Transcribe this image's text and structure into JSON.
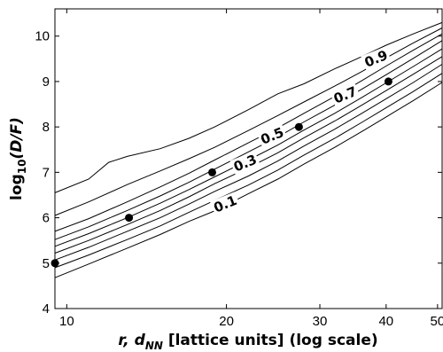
{
  "chart_data": {
    "type": "line",
    "xscale": "log",
    "xlim": [
      9.5,
      51
    ],
    "ylim": [
      4,
      10.6
    ],
    "xticks": [
      10,
      20,
      30,
      40,
      50
    ],
    "yticks": [
      4,
      5,
      6,
      7,
      8,
      9,
      10
    ],
    "xlabel": {
      "prefix": "r, d",
      "sub": "NN",
      "suffix": " [lattice units] (log scale)"
    },
    "ylabel": {
      "prefix": "log",
      "sub": "10",
      "suffix": "(D/F)"
    },
    "grid": false,
    "points": [
      {
        "x": 9.5,
        "y": 5.0
      },
      {
        "x": 13.1,
        "y": 6.0
      },
      {
        "x": 18.8,
        "y": 7.0
      },
      {
        "x": 27.4,
        "y": 8.0
      },
      {
        "x": 40.4,
        "y": 9.0
      }
    ],
    "contour_labels": [
      {
        "text": "0.1",
        "x": 19.9,
        "y": 6.3
      },
      {
        "text": "0.3",
        "x": 21.7,
        "y": 7.2
      },
      {
        "text": "0.5",
        "x": 24.4,
        "y": 7.8
      },
      {
        "text": "0.7",
        "x": 33.5,
        "y": 8.7
      },
      {
        "text": "0.9",
        "x": 38.3,
        "y": 9.5
      }
    ],
    "series": [
      {
        "x": [
          9.5,
          11,
          13,
          15,
          17,
          19,
          22,
          25,
          28,
          32,
          36,
          40,
          45,
          51
        ],
        "y": [
          4.68,
          4.98,
          5.33,
          5.63,
          5.92,
          6.15,
          6.53,
          6.85,
          7.18,
          7.55,
          7.9,
          8.22,
          8.58,
          8.98
        ]
      },
      {
        "x": [
          9.5,
          11,
          13,
          15,
          17,
          19,
          22,
          25,
          28,
          32,
          36,
          40,
          45,
          51
        ],
        "y": [
          4.9,
          5.18,
          5.52,
          5.82,
          6.12,
          6.38,
          6.72,
          7.05,
          7.38,
          7.75,
          8.1,
          8.42,
          8.78,
          9.18
        ]
      },
      {
        "x": [
          9.5,
          11,
          13,
          15,
          17,
          19,
          22,
          25,
          28,
          32,
          36,
          40,
          45,
          51
        ],
        "y": [
          5.07,
          5.35,
          5.7,
          6.0,
          6.3,
          6.58,
          6.92,
          7.25,
          7.58,
          7.95,
          8.3,
          8.62,
          8.98,
          9.38
        ]
      },
      {
        "x": [
          9.5,
          11,
          13,
          15,
          17,
          19,
          22,
          25,
          28,
          32,
          36,
          40,
          45,
          51
        ],
        "y": [
          5.22,
          5.5,
          5.85,
          6.16,
          6.46,
          6.75,
          7.1,
          7.43,
          7.76,
          8.13,
          8.48,
          8.8,
          9.16,
          9.55
        ]
      },
      {
        "x": [
          9.5,
          11,
          13,
          15,
          17,
          19,
          22,
          25,
          28,
          32,
          36,
          40,
          45,
          51
        ],
        "y": [
          5.37,
          5.65,
          6.0,
          6.32,
          6.62,
          6.9,
          7.27,
          7.6,
          7.93,
          8.3,
          8.65,
          8.97,
          9.33,
          9.72
        ]
      },
      {
        "x": [
          9.5,
          11,
          13,
          15,
          17,
          19,
          22,
          25,
          28,
          32,
          36,
          40,
          45,
          51
        ],
        "y": [
          5.52,
          5.8,
          6.16,
          6.48,
          6.78,
          7.07,
          7.45,
          7.78,
          8.11,
          8.48,
          8.83,
          9.15,
          9.51,
          9.9
        ]
      },
      {
        "x": [
          9.5,
          11,
          13,
          15,
          17,
          19,
          22,
          25,
          28,
          32,
          36,
          40,
          45,
          51
        ],
        "y": [
          5.7,
          5.98,
          6.35,
          6.68,
          6.98,
          7.27,
          7.65,
          7.98,
          8.3,
          8.67,
          9.02,
          9.34,
          9.69,
          10.05
        ]
      },
      {
        "x": [
          9.5,
          11,
          13,
          15,
          17,
          19,
          22,
          25,
          28,
          32,
          36,
          40,
          45,
          51
        ],
        "y": [
          6.05,
          6.35,
          6.73,
          7.03,
          7.3,
          7.55,
          7.92,
          8.25,
          8.55,
          8.9,
          9.22,
          9.52,
          9.85,
          10.18
        ]
      },
      {
        "x": [
          9.5,
          11,
          12,
          13,
          15,
          17,
          19,
          22,
          25,
          28,
          32,
          36,
          40,
          45,
          51
        ],
        "y": [
          6.55,
          6.85,
          7.22,
          7.35,
          7.52,
          7.75,
          8.0,
          8.38,
          8.73,
          8.95,
          9.28,
          9.55,
          9.8,
          10.05,
          10.3
        ]
      }
    ]
  }
}
